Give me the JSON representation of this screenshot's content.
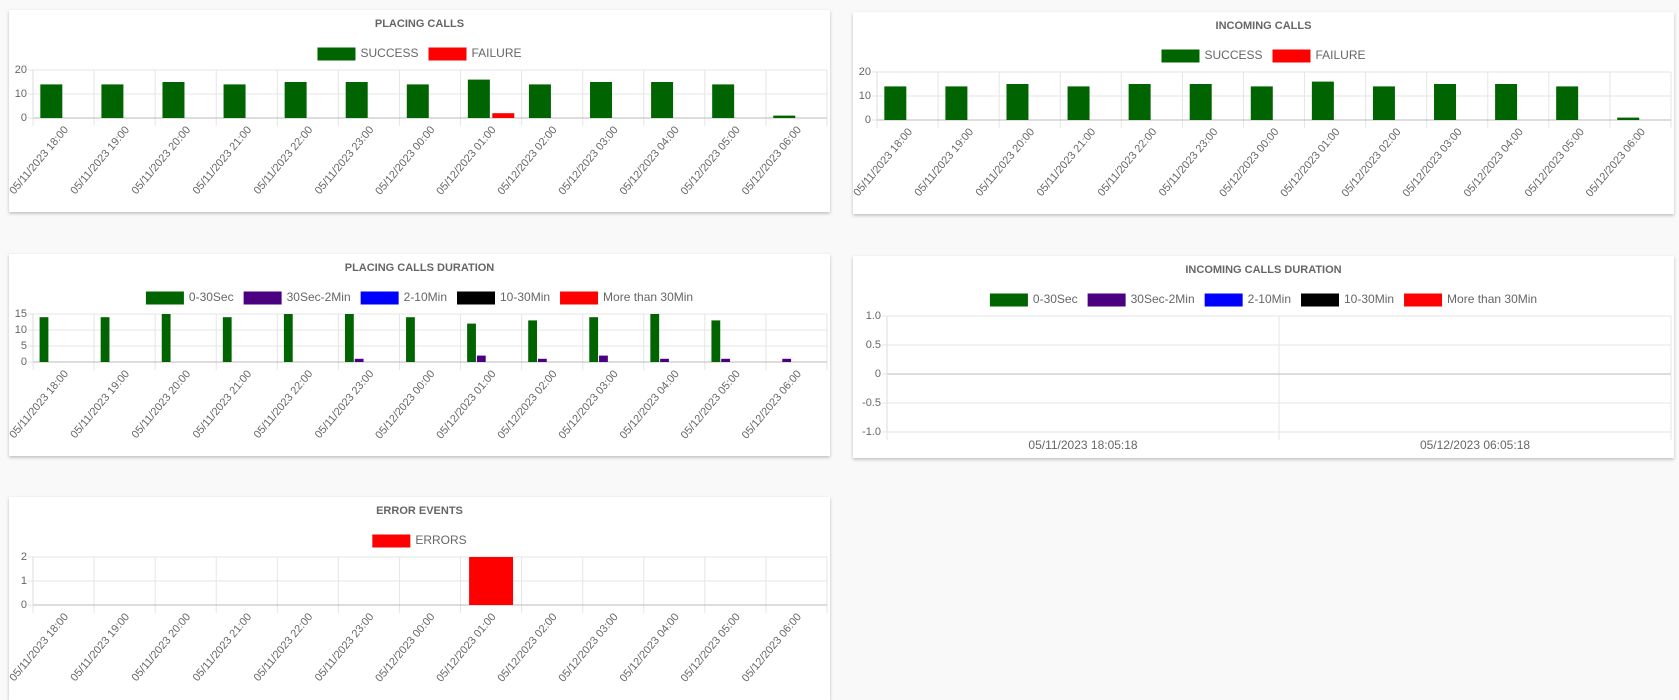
{
  "chart_data": [
    {
      "type": "bar",
      "title": "PLACING CALLS",
      "categories": [
        "05/11/2023 18:00",
        "05/11/2023 19:00",
        "05/11/2023 20:00",
        "05/11/2023 21:00",
        "05/11/2023 22:00",
        "05/11/2023 23:00",
        "05/12/2023 00:00",
        "05/12/2023 01:00",
        "05/12/2023 02:00",
        "05/12/2023 03:00",
        "05/12/2023 04:00",
        "05/12/2023 05:00",
        "05/12/2023 06:00"
      ],
      "series": [
        {
          "name": "SUCCESS",
          "color": "#006400",
          "values": [
            14,
            14,
            15,
            14,
            15,
            15,
            14,
            16,
            14,
            15,
            15,
            14,
            1
          ]
        },
        {
          "name": "FAILURE",
          "color": "#ff0000",
          "values": [
            0,
            0,
            0,
            0,
            0,
            0,
            0,
            2,
            0,
            0,
            0,
            0,
            0
          ]
        }
      ],
      "ylim": [
        0,
        20
      ],
      "yticks": [
        0,
        10,
        20
      ],
      "grid": true
    },
    {
      "type": "bar",
      "title": "INCOMING CALLS",
      "categories": [
        "05/11/2023 18:00",
        "05/11/2023 19:00",
        "05/11/2023 20:00",
        "05/11/2023 21:00",
        "05/11/2023 22:00",
        "05/11/2023 23:00",
        "05/12/2023 00:00",
        "05/12/2023 01:00",
        "05/12/2023 02:00",
        "05/12/2023 03:00",
        "05/12/2023 04:00",
        "05/12/2023 05:00",
        "05/12/2023 06:00"
      ],
      "series": [
        {
          "name": "SUCCESS",
          "color": "#006400",
          "values": [
            14,
            14,
            15,
            14,
            15,
            15,
            14,
            16,
            14,
            15,
            15,
            14,
            1
          ]
        },
        {
          "name": "FAILURE",
          "color": "#ff0000",
          "values": [
            0,
            0,
            0,
            0,
            0,
            0,
            0,
            0,
            0,
            0,
            0,
            0,
            0
          ]
        }
      ],
      "ylim": [
        0,
        20
      ],
      "yticks": [
        0,
        10,
        20
      ],
      "grid": true
    },
    {
      "type": "bar",
      "title": "PLACING CALLS DURATION",
      "categories": [
        "05/11/2023 18:00",
        "05/11/2023 19:00",
        "05/11/2023 20:00",
        "05/11/2023 21:00",
        "05/11/2023 22:00",
        "05/11/2023 23:00",
        "05/12/2023 00:00",
        "05/12/2023 01:00",
        "05/12/2023 02:00",
        "05/12/2023 03:00",
        "05/12/2023 04:00",
        "05/12/2023 05:00",
        "05/12/2023 06:00"
      ],
      "series": [
        {
          "name": "0-30Sec",
          "color": "#006400",
          "values": [
            14,
            14,
            15,
            14,
            15,
            15,
            14,
            12,
            13,
            14,
            15,
            13,
            0
          ]
        },
        {
          "name": "30Sec-2Min",
          "color": "#4b0082",
          "values": [
            0,
            0,
            0,
            0,
            0,
            1,
            0,
            2,
            1,
            2,
            1,
            1,
            1
          ]
        },
        {
          "name": "2-10Min",
          "color": "#0000ff",
          "values": [
            0,
            0,
            0,
            0,
            0,
            0,
            0,
            0,
            0,
            0,
            0,
            0,
            0
          ]
        },
        {
          "name": "10-30Min",
          "color": "#000000",
          "values": [
            0,
            0,
            0,
            0,
            0,
            0,
            0,
            0,
            0,
            0,
            0,
            0,
            0
          ]
        },
        {
          "name": "More than 30Min",
          "color": "#ff0000",
          "values": [
            0,
            0,
            0,
            0,
            0,
            0,
            0,
            0,
            0,
            0,
            0,
            0,
            0
          ]
        }
      ],
      "ylim": [
        0,
        15
      ],
      "yticks": [
        0,
        5,
        10,
        15
      ],
      "grid": true
    },
    {
      "type": "bar",
      "title": "INCOMING CALLS DURATION",
      "categories": [
        "05/11/2023 18:05:18",
        "05/12/2023 06:05:18"
      ],
      "series": [
        {
          "name": "0-30Sec",
          "color": "#006400",
          "values": [
            null,
            null
          ]
        },
        {
          "name": "30Sec-2Min",
          "color": "#4b0082",
          "values": [
            null,
            null
          ]
        },
        {
          "name": "2-10Min",
          "color": "#0000ff",
          "values": [
            null,
            null
          ]
        },
        {
          "name": "10-30Min",
          "color": "#000000",
          "values": [
            null,
            null
          ]
        },
        {
          "name": "More than 30Min",
          "color": "#ff0000",
          "values": [
            null,
            null
          ]
        }
      ],
      "ylim": [
        -1,
        1
      ],
      "yticks": [
        {
          "value": -1,
          "label": "-1.0"
        },
        -0.5,
        0,
        0.5,
        {
          "value": 1,
          "label": "1.0"
        }
      ],
      "grid": true
    },
    {
      "type": "bar",
      "title": "ERROR EVENTS",
      "categories": [
        "05/11/2023 18:00",
        "05/11/2023 19:00",
        "05/11/2023 20:00",
        "05/11/2023 21:00",
        "05/11/2023 22:00",
        "05/11/2023 23:00",
        "05/12/2023 00:00",
        "05/12/2023 01:00",
        "05/12/2023 02:00",
        "05/12/2023 03:00",
        "05/12/2023 04:00",
        "05/12/2023 05:00",
        "05/12/2023 06:00"
      ],
      "series": [
        {
          "name": "ERRORS",
          "color": "#ff0000",
          "values": [
            0,
            0,
            0,
            0,
            0,
            0,
            0,
            2,
            0,
            0,
            0,
            0,
            0
          ]
        }
      ],
      "ylim": [
        0,
        2
      ],
      "yticks": [
        0,
        1,
        2
      ],
      "grid": true
    }
  ]
}
